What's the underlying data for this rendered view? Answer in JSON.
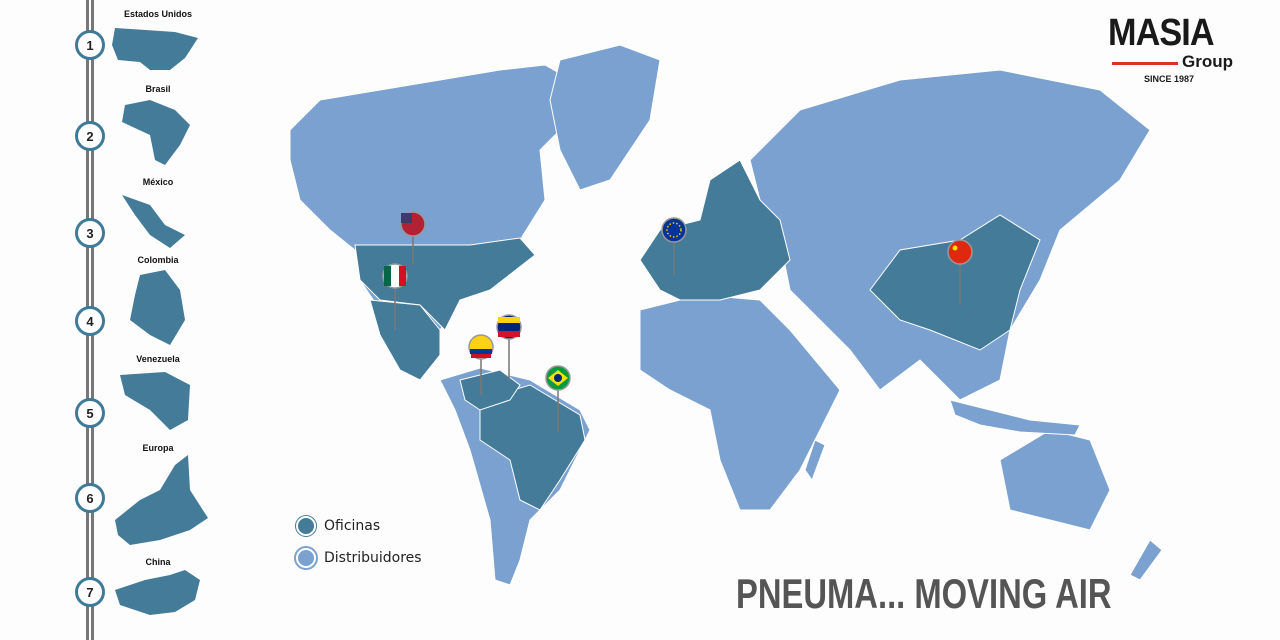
{
  "logo": {
    "brand": "MASIA",
    "sub": "Group",
    "since": "SINCE 1987"
  },
  "sidebar": {
    "items": [
      {
        "number": "1",
        "label": "Estados Unidos"
      },
      {
        "number": "2",
        "label": "Brasil"
      },
      {
        "number": "3",
        "label": "México"
      },
      {
        "number": "4",
        "label": "Colombia"
      },
      {
        "number": "5",
        "label": "Venezuela"
      },
      {
        "number": "6",
        "label": "Europa"
      },
      {
        "number": "7",
        "label": "China"
      }
    ]
  },
  "legend": {
    "offices": "Oficinas",
    "distributors": "Distribuidores"
  },
  "colors": {
    "offices": "#437b99",
    "distributors": "#7aa1cf",
    "accent": "#d8322b"
  },
  "pins": [
    "usa-flag",
    "mexico-flag",
    "venezuela-flag",
    "colombia-flag",
    "brazil-flag",
    "eu-flag",
    "china-flag"
  ],
  "slogan": "PNEUMA... MOVING AIR"
}
